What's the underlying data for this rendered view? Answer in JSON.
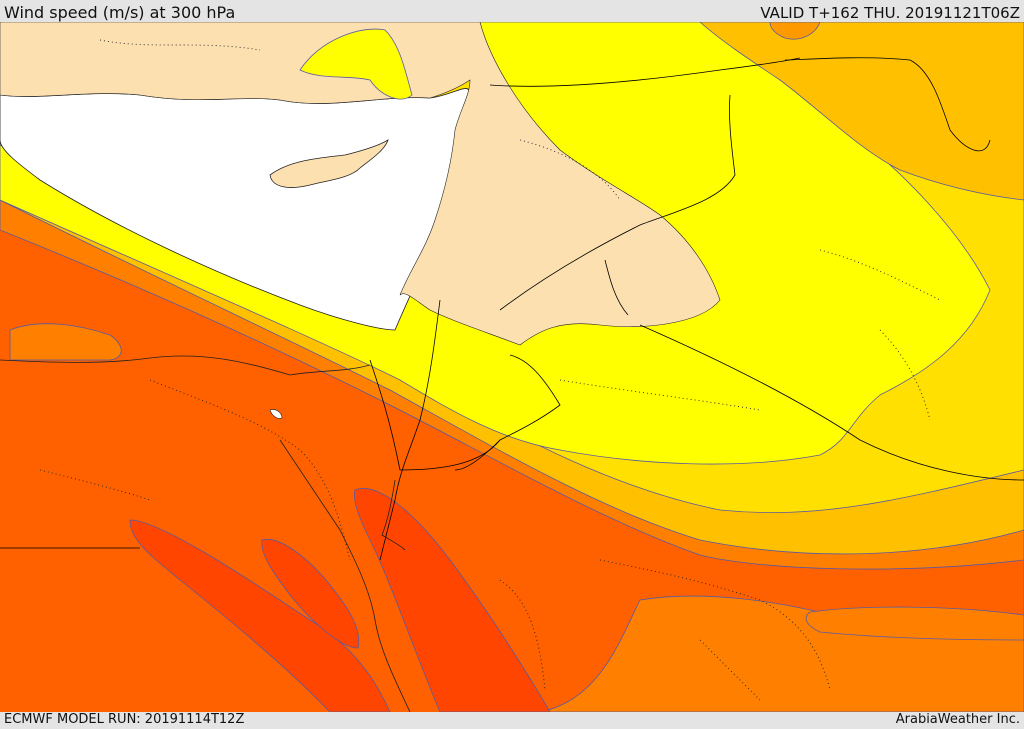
{
  "header": {
    "title": "Wind speed (m/s) at 300 hPa",
    "valid_time": "VALID T+162 THU. 20191121T06Z"
  },
  "footer": {
    "model_run": "ECMWF MODEL RUN: 20191114T12Z",
    "credit": "ArabiaWeather Inc."
  },
  "colors": {
    "sea": "#ffffff",
    "land": "#fde0b0",
    "band_yellow": "#ffff00",
    "band_gold": "#ffe000",
    "band_amber": "#ffc000",
    "band_orange": "#ff9900",
    "band_deep_orange": "#ff8000",
    "band_red_orange": "#ff6000",
    "band_red": "#ff4500",
    "contour_line": "#5a5aa0",
    "border_line": "#000000"
  }
}
